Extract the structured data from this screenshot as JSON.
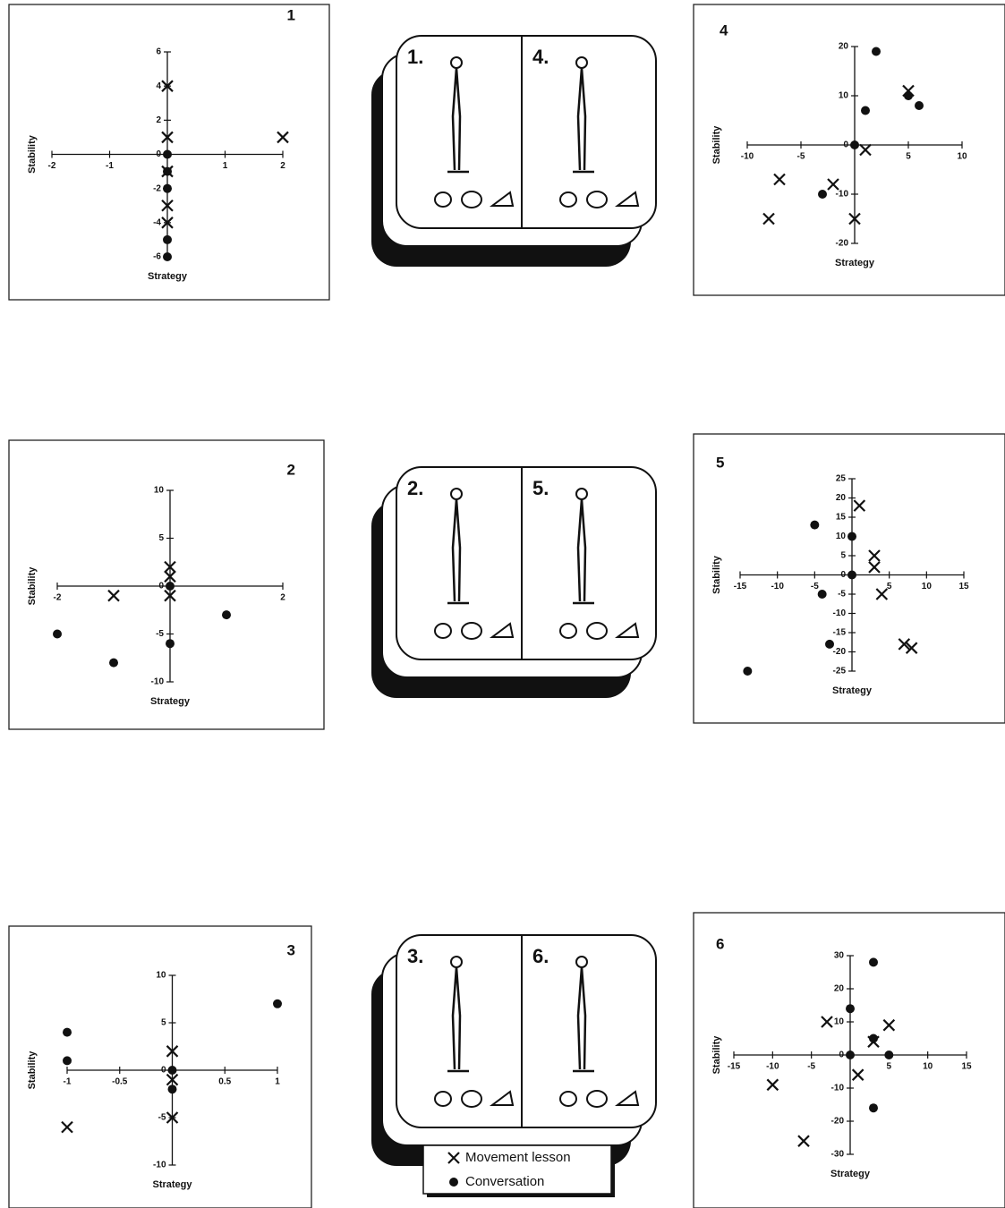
{
  "chart_data": [
    {
      "type": "scatter",
      "title": "1",
      "xlabel": "Strategy",
      "ylabel": "Stability",
      "xlim": [
        -2,
        2
      ],
      "ylim": [
        -6,
        6
      ],
      "xticks": [
        -2,
        -1,
        1,
        2
      ],
      "yticks": [
        -6,
        -4,
        -2,
        0,
        2,
        4,
        6
      ],
      "series": [
        {
          "marker": "x",
          "x": [
            0,
            0,
            2,
            0,
            0,
            0
          ],
          "y": [
            4,
            1,
            1,
            -1,
            -3,
            -4
          ]
        },
        {
          "marker": "dot",
          "x": [
            0,
            0,
            0,
            0,
            0
          ],
          "y": [
            0,
            -1,
            -2,
            -5,
            -6
          ]
        }
      ]
    },
    {
      "type": "scatter",
      "title": "2",
      "xlabel": "Strategy",
      "ylabel": "Stability",
      "xlim": [
        -2,
        2
      ],
      "ylim": [
        -10,
        10
      ],
      "xticks": [
        -2,
        2
      ],
      "yticks": [
        -10,
        -5,
        0,
        5,
        10
      ],
      "series": [
        {
          "marker": "x",
          "x": [
            -1,
            0,
            0,
            0
          ],
          "y": [
            -1,
            2,
            1,
            -1
          ]
        },
        {
          "marker": "dot",
          "x": [
            -2,
            -1,
            0,
            1,
            0
          ],
          "y": [
            -5,
            -8,
            -6,
            -3,
            0
          ]
        }
      ]
    },
    {
      "type": "scatter",
      "title": "3",
      "xlabel": "Strategy",
      "ylabel": "Stability",
      "xlim": [
        -1,
        1
      ],
      "ylim": [
        -10,
        10
      ],
      "xticks": [
        -1,
        -0.5,
        0.5,
        1
      ],
      "yticks": [
        -10,
        -5,
        0,
        5,
        10
      ],
      "series": [
        {
          "marker": "x",
          "x": [
            -1,
            0,
            0,
            0
          ],
          "y": [
            -6,
            2,
            -5,
            -1
          ]
        },
        {
          "marker": "dot",
          "x": [
            -1,
            -1,
            0,
            1,
            0
          ],
          "y": [
            4,
            1,
            0,
            7,
            -2
          ]
        }
      ]
    },
    {
      "type": "scatter",
      "title": "4",
      "xlabel": "Strategy",
      "ylabel": "Stability",
      "xlim": [
        -10,
        10
      ],
      "ylim": [
        -20,
        20
      ],
      "xticks": [
        -10,
        -5,
        5,
        10
      ],
      "yticks": [
        -20,
        -10,
        0,
        10,
        20
      ],
      "series": [
        {
          "marker": "x",
          "x": [
            -8,
            -7,
            -2,
            0,
            1,
            5
          ],
          "y": [
            -15,
            -7,
            -8,
            -15,
            -1,
            11
          ]
        },
        {
          "marker": "dot",
          "x": [
            2,
            0,
            1,
            5,
            6,
            -3
          ],
          "y": [
            19,
            0,
            7,
            10,
            8,
            -10
          ]
        }
      ]
    },
    {
      "type": "scatter",
      "title": "5",
      "xlabel": "Strategy",
      "ylabel": "Stability",
      "xlim": [
        -15,
        15
      ],
      "ylim": [
        -25,
        25
      ],
      "xticks": [
        -15,
        -10,
        -5,
        5,
        10,
        15
      ],
      "yticks": [
        -25,
        -20,
        -15,
        -10,
        -5,
        0,
        5,
        10,
        15,
        20,
        25
      ],
      "series": [
        {
          "marker": "x",
          "x": [
            1,
            3,
            3,
            4,
            7,
            8
          ],
          "y": [
            18,
            5,
            2,
            -5,
            -18,
            -19
          ]
        },
        {
          "marker": "dot",
          "x": [
            -5,
            0,
            0,
            -4,
            -3,
            -14
          ],
          "y": [
            13,
            10,
            0,
            -5,
            -18,
            -25
          ]
        }
      ]
    },
    {
      "type": "scatter",
      "title": "6",
      "xlabel": "Strategy",
      "ylabel": "Stability",
      "xlim": [
        -15,
        15
      ],
      "ylim": [
        -30,
        30
      ],
      "xticks": [
        -15,
        -10,
        -5,
        5,
        10,
        15
      ],
      "yticks": [
        -30,
        -20,
        -10,
        0,
        10,
        20,
        30
      ],
      "series": [
        {
          "marker": "x",
          "x": [
            -3,
            3,
            5,
            1,
            -10,
            -6
          ],
          "y": [
            10,
            4,
            9,
            -6,
            -9,
            -26
          ]
        },
        {
          "marker": "dot",
          "x": [
            3,
            0,
            3,
            0,
            5,
            3
          ],
          "y": [
            28,
            14,
            5,
            0,
            0,
            -16
          ]
        }
      ]
    }
  ],
  "panels": [
    {
      "labels": [
        "1.",
        "4."
      ]
    },
    {
      "labels": [
        "2.",
        "5."
      ]
    },
    {
      "labels": [
        "3.",
        "6."
      ]
    }
  ],
  "legend": [
    {
      "name": "Movement lesson",
      "marker": "x"
    },
    {
      "name": "Conversation",
      "marker": "dot"
    }
  ]
}
